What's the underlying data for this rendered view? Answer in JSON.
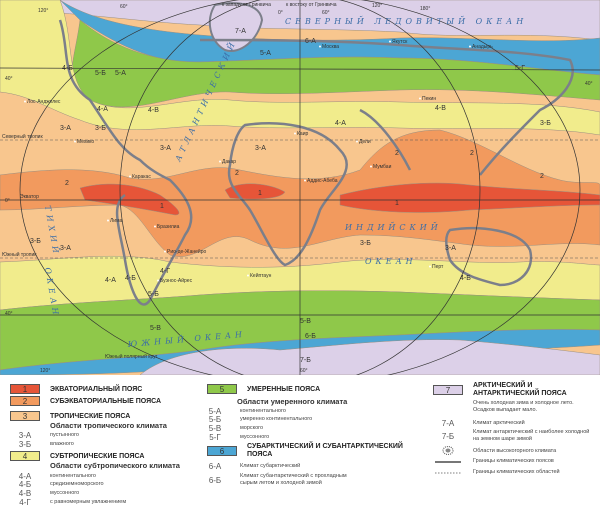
{
  "colors": {
    "equatorial": "#e65538",
    "subequatorial": "#f29a5e",
    "tropical": "#f8c68e",
    "subtropical": "#f1ec8c",
    "temperate": "#8fc84a",
    "subarctic": "#4ca6d4",
    "arctic": "#dcd0e8",
    "coast": "#7c7f8a"
  },
  "map": {
    "graticule_labels": [
      "120°",
      "60°",
      "к западу от Гринвича",
      "к востоку от Гринвича",
      "0°",
      "60°",
      "120°",
      "180°",
      "40°",
      "40°",
      "0°",
      "40°",
      "120°",
      "60°"
    ],
    "lines": [
      "Северный тропик",
      "Экватор",
      "Южный тропик",
      "Южный полярный круг"
    ],
    "oceans": [
      "СЕВЕРНЫЙ ЛЕДОВИТЫЙ ОКЕАН",
      "ТИХИЙ",
      "ОКЕАН",
      "АТЛАНТИЧЕСКИЙ",
      "ИНДИЙСКИЙ",
      "ОКЕАН",
      "ЮЖНЫЙ ОКЕАН"
    ],
    "cities": [
      "Лос-Анджелес",
      "Мехико",
      "Каракас",
      "Бразилиа",
      "Лима",
      "Рио-де-Жанейро",
      "Буэнос-Айрес",
      "Дакар",
      "Каир",
      "Аддис-Абеба",
      "Кейптаун",
      "Дели",
      "Мумбаи",
      "Якутск",
      "Анадырь",
      "Пекин",
      "Перт",
      "Москва"
    ],
    "zone_codes": [
      "7-А",
      "6-А",
      "5-Б",
      "5-А",
      "4-Б",
      "4-А",
      "4-В",
      "3-А",
      "3-Б",
      "2",
      "1",
      "2",
      "3-Б",
      "3-А",
      "3-А",
      "2",
      "1",
      "1",
      "2",
      "3-Б",
      "3-А",
      "3-Б",
      "4-Б",
      "4-Г",
      "4-Б",
      "4-А",
      "5-Б",
      "5-В",
      "5-В",
      "6-Б",
      "7-Б",
      "5-А",
      "4-А",
      "4-В",
      "3-А",
      "2",
      "5-Г"
    ]
  },
  "legend": {
    "col1": {
      "zone1": {
        "num": "1",
        "label": "ЭКВАТОРИАЛЬНЫЙ ПОЯС"
      },
      "zone2": {
        "num": "2",
        "label": "СУБЭКВАТОРИАЛЬНЫЕ ПОЯСА"
      },
      "zone3": {
        "num": "3",
        "label": "ТРОПИЧЕСКИЕ ПОЯСА"
      },
      "tropical_heading": "Области тропического климата",
      "tropical_areas": [
        {
          "code": "3-А",
          "label": "пустынного"
        },
        {
          "code": "3-Б",
          "label": "влажного"
        }
      ],
      "zone4": {
        "num": "4",
        "label": "СУБТРОПИЧЕСКИЕ ПОЯСА"
      },
      "subtropical_heading": "Области субтропического климата",
      "subtropical_areas": [
        {
          "code": "4-А",
          "label": "континентального"
        },
        {
          "code": "4-Б",
          "label": "средиземноморского"
        },
        {
          "code": "4-В",
          "label": "муссонного"
        },
        {
          "code": "4-Г",
          "label": "с равномерным увлажнением"
        }
      ]
    },
    "col2": {
      "zone5": {
        "num": "5",
        "label": "УМЕРЕННЫЕ ПОЯСА"
      },
      "temperate_heading": "Области умеренного климата",
      "temperate_areas": [
        {
          "code": "5-А",
          "label": "континентального"
        },
        {
          "code": "5-Б",
          "label": "умеренно континентального"
        },
        {
          "code": "5-В",
          "label": "морского"
        },
        {
          "code": "5-Г",
          "label": "муссонного"
        }
      ],
      "zone6": {
        "num": "6",
        "label": "СУБАРКТИЧЕСКИЙ И СУБАНТАРКТИЧЕСКИЙ ПОЯСА"
      },
      "subarctic_areas": [
        {
          "code": "6-А",
          "label": "Климат субарктический"
        },
        {
          "code": "6-Б",
          "label1": "Климат субантарктический с прохладным",
          "label2": "сырым летом и холодной зимой"
        }
      ]
    },
    "col3": {
      "zone7": {
        "num": "7",
        "label": "АРКТИЧЕСКИЙ И АНТАРКТИЧЕСКИЙ ПОЯСА"
      },
      "desc1": "Очень холодная зима и холодное лето.",
      "desc2": "Осадков выпадает мало.",
      "arctic_areas": [
        {
          "code": "7-А",
          "label": "Климат арктический"
        },
        {
          "code": "7-Б",
          "label1": "Климат антарктический с наиболее холодной",
          "label2": "на земном шаре зимой"
        }
      ],
      "highland": "Области высокогорного климата",
      "belt_borders": "Границы климатических поясов",
      "area_borders": "Границы климатических областей"
    }
  }
}
